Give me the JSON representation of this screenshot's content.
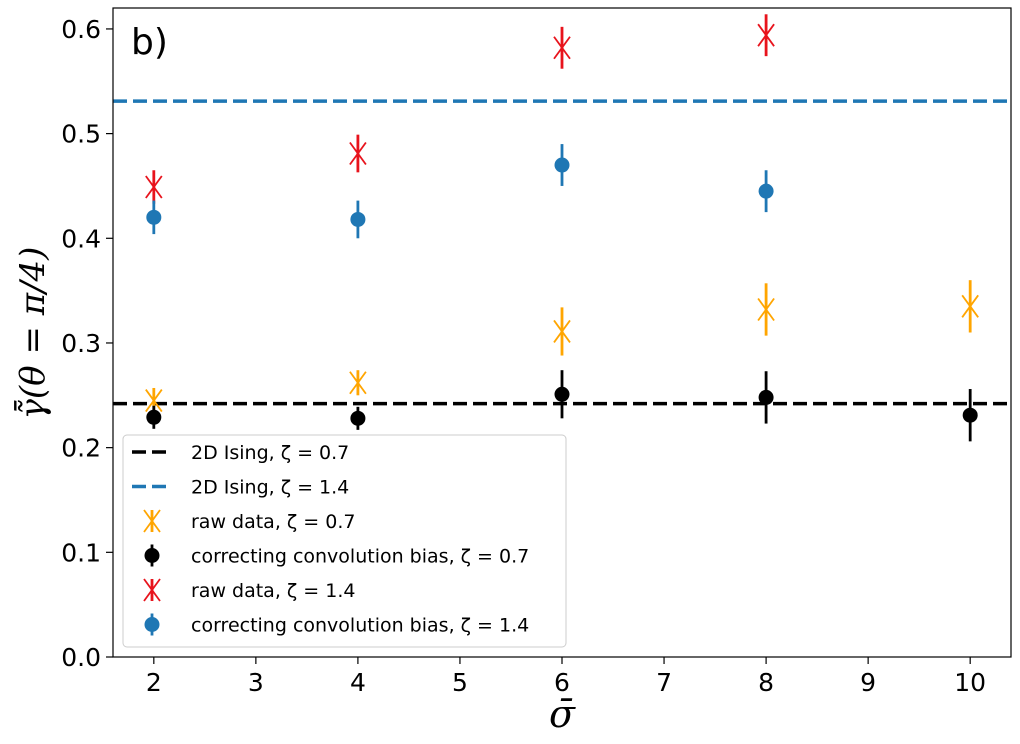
{
  "chart_data": {
    "type": "scatter",
    "panel_label": "b)",
    "xlabel": "σ̄",
    "ylabel": "γ̃̄(θ = π/4)",
    "xlim": [
      1.6,
      10.4
    ],
    "ylim": [
      0.0,
      0.62
    ],
    "x_ticks": [
      2,
      3,
      4,
      5,
      6,
      7,
      8,
      9,
      10
    ],
    "y_ticks": [
      0.0,
      0.1,
      0.2,
      0.3,
      0.4,
      0.5,
      0.6
    ],
    "x_tick_labels": [
      "2",
      "3",
      "4",
      "5",
      "6",
      "7",
      "8",
      "9",
      "10"
    ],
    "y_tick_labels": [
      "0.0",
      "0.1",
      "0.2",
      "0.3",
      "0.4",
      "0.5",
      "0.6"
    ],
    "grid": false,
    "legend_position": "lower-left",
    "reference_lines": [
      {
        "name": "2D Ising, ζ = 0.7",
        "value": 0.242,
        "color": "#000000",
        "style": "dashed"
      },
      {
        "name": "2D Ising, ζ = 1.4",
        "value": 0.531,
        "color": "#1f77b4",
        "style": "dashed"
      }
    ],
    "series": [
      {
        "name": "raw data, ζ = 0.7",
        "marker": "x",
        "color": "#ffa500",
        "x": [
          2,
          4,
          6,
          8,
          10
        ],
        "y": [
          0.245,
          0.262,
          0.311,
          0.332,
          0.335
        ],
        "yerr": [
          0.012,
          0.012,
          0.023,
          0.025,
          0.025
        ]
      },
      {
        "name": "correcting convolution bias, ζ = 0.7",
        "marker": "o",
        "color": "#000000",
        "x": [
          2,
          4,
          6,
          8,
          10
        ],
        "y": [
          0.229,
          0.228,
          0.251,
          0.248,
          0.231
        ],
        "yerr": [
          0.011,
          0.011,
          0.023,
          0.025,
          0.025
        ]
      },
      {
        "name": "raw data, ζ = 1.4",
        "marker": "x",
        "color": "#e8131c",
        "x": [
          2,
          4,
          6,
          8
        ],
        "y": [
          0.449,
          0.481,
          0.582,
          0.594
        ],
        "yerr": [
          0.016,
          0.018,
          0.02,
          0.02
        ]
      },
      {
        "name": "correcting convolution bias, ζ = 1.4",
        "marker": "o",
        "color": "#1f77b4",
        "x": [
          2,
          4,
          6,
          8
        ],
        "y": [
          0.42,
          0.418,
          0.47,
          0.445
        ],
        "yerr": [
          0.016,
          0.018,
          0.02,
          0.02
        ]
      }
    ]
  }
}
